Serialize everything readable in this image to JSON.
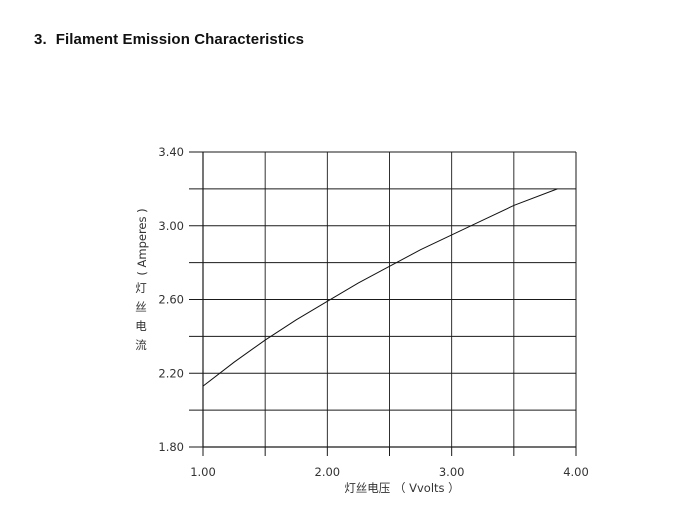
{
  "section": {
    "number": "3.",
    "title": "Filament Emission Characteristics"
  },
  "chart_data": {
    "type": "line",
    "title": "",
    "xlabel": "灯丝电压 （ Vvolts ）",
    "ylabel_cjk": [
      "灯",
      "丝",
      "电",
      "流"
    ],
    "ylabel_unit": "( Amperes )",
    "xlim": [
      1.0,
      4.0
    ],
    "ylim": [
      1.8,
      3.4
    ],
    "x_ticks": [
      "1.00",
      "2.00",
      "3.00",
      "4.00"
    ],
    "y_ticks": [
      "1.80",
      "2.20",
      "2.60",
      "3.00",
      "3.40"
    ],
    "grid": true,
    "series": [
      {
        "x": [
          1.0,
          1.25,
          1.5,
          1.75,
          2.0,
          2.25,
          2.5,
          2.75,
          3.0,
          3.25,
          3.5,
          3.85
        ],
        "y": [
          2.13,
          2.26,
          2.38,
          2.49,
          2.59,
          2.69,
          2.78,
          2.87,
          2.95,
          3.03,
          3.11,
          3.2
        ]
      }
    ]
  }
}
